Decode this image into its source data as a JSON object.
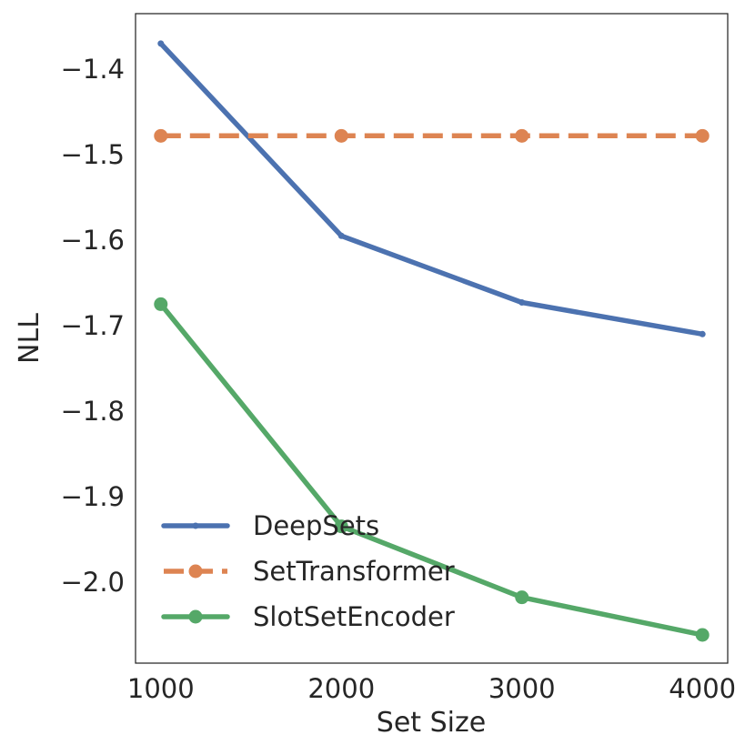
{
  "chart_data": {
    "type": "line",
    "xlabel": "Set Size",
    "ylabel": "NLL",
    "x": [
      1000,
      2000,
      3000,
      4000
    ],
    "xlim": [
      860,
      4140
    ],
    "ylim": [
      -2.095,
      -1.335
    ],
    "xticks": [
      1000,
      2000,
      3000,
      4000
    ],
    "yticks": [
      -1.4,
      -1.5,
      -1.6,
      -1.7,
      -1.8,
      -1.9,
      -2.0
    ],
    "ytick_labels": [
      "−1.4",
      "−1.5",
      "−1.6",
      "−1.7",
      "−1.8",
      "−1.9",
      "−2.0"
    ],
    "grid": false,
    "legend_position": "lower-left",
    "series": [
      {
        "name": "DeepSets",
        "values": [
          -1.37,
          -1.595,
          -1.673,
          -1.71
        ],
        "color": "#4c72b0",
        "dashed": false,
        "marker_size": "small"
      },
      {
        "name": "SetTransformer",
        "values": [
          -1.478,
          -1.478,
          -1.478,
          -1.478
        ],
        "color": "#dd8452",
        "dashed": true,
        "marker_size": "large"
      },
      {
        "name": "SlotSetEncoder",
        "values": [
          -1.675,
          -1.935,
          -2.018,
          -2.062
        ],
        "color": "#55a868",
        "dashed": false,
        "marker_size": "large"
      }
    ]
  }
}
